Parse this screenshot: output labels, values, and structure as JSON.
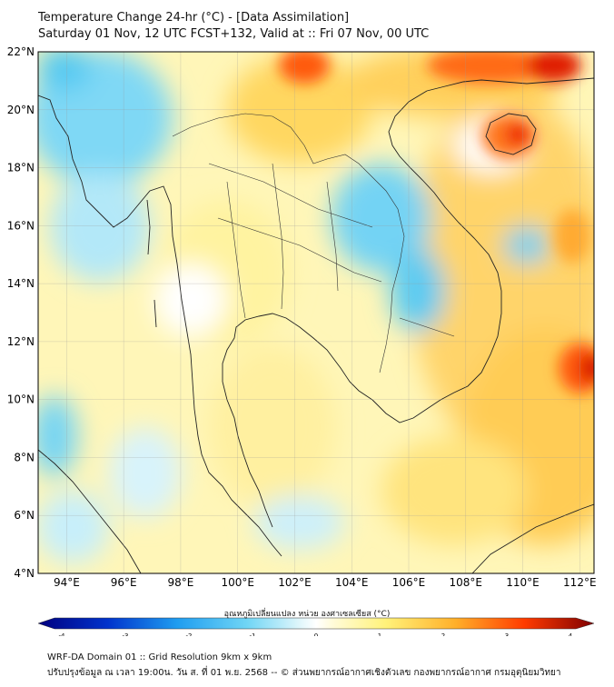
{
  "header": {
    "title": "Temperature Change 24-hr (°C) - [Data Assimilation]",
    "subtitle": "Saturday 01 Nov, 12 UTC FCST+132, Valid at :: Fri 07 Nov, 00 UTC"
  },
  "map": {
    "lat_ticks": [
      "22°N",
      "20°N",
      "18°N",
      "16°N",
      "14°N",
      "12°N",
      "10°N",
      "8°N",
      "6°N",
      "4°N"
    ],
    "lon_ticks": [
      "94°E",
      "96°E",
      "98°E",
      "100°E",
      "102°E",
      "104°E",
      "106°E",
      "108°E",
      "110°E",
      "112°E"
    ],
    "lat_range": [
      4,
      22
    ],
    "lon_range": [
      93,
      112.5
    ]
  },
  "colorbar": {
    "label": "อุณหภูมิเปลี่ยนแปลง หน่วย องศาเซลเซียส (°C)",
    "ticks": [
      "-4",
      "-3",
      "-2",
      "-1",
      "0",
      "1",
      "2",
      "3",
      "4"
    ],
    "range": [
      -4,
      4
    ]
  },
  "footer": {
    "line1": "WRF-DA Domain 01 :: Grid Resolution 9km x 9km",
    "line2": "ปรับปรุงข้อมูล ณ เวลา 19:00น. วัน ส. ที่ 01 พ.ย. 2568 -- © ส่วนพยากรณ์อากาศเชิงตัวเลข กองพยากรณ์อากาศ กรมอุตุนิยมวิทยา"
  },
  "colors": {
    "neg4": "#00007f",
    "neg3": "#0033cc",
    "neg2": "#1f9df0",
    "neg1": "#6fd5f5",
    "zero": "#ffffff",
    "pos1": "#fff27a",
    "pos2": "#ffb02a",
    "pos3": "#ff3b00",
    "pos4": "#7f0000",
    "coast": "#222222"
  }
}
